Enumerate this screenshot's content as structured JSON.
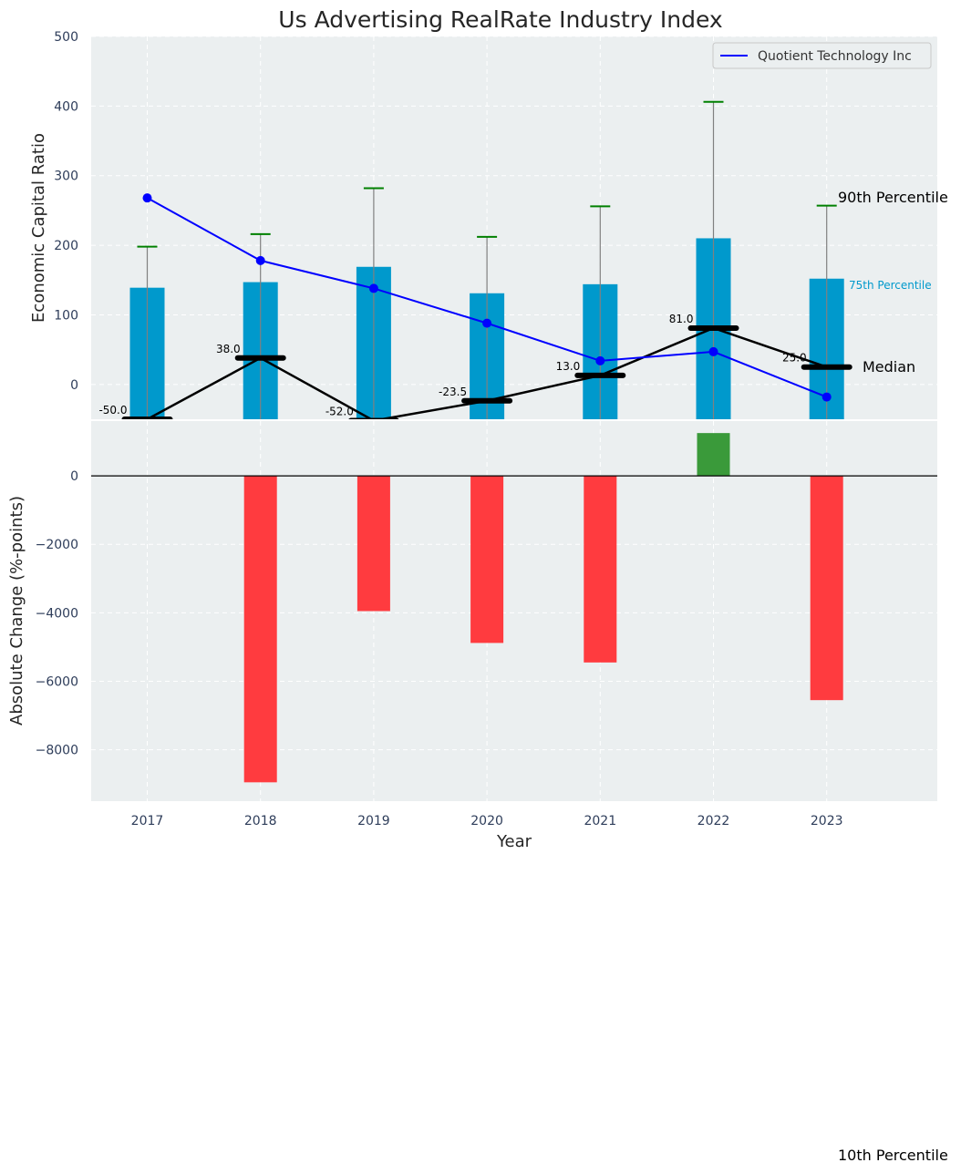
{
  "chart_data": [
    {
      "type": "bar",
      "title": "Us Advertising RealRate Industry Index",
      "ylabel": "Economic Capital Ratio",
      "ylim": [
        -50,
        500
      ],
      "yticks": [
        0,
        100,
        200,
        300,
        400,
        500
      ],
      "categories": [
        "2017",
        "2018",
        "2019",
        "2020",
        "2021",
        "2022",
        "2023"
      ],
      "grid": true,
      "legend": {
        "position": "top-right",
        "entries": [
          "Quotient Technology Inc"
        ]
      },
      "series": [
        {
          "name": "75th Percentile",
          "kind": "bar",
          "color": "#0099cc",
          "values": [
            139,
            147,
            169,
            131,
            144,
            210,
            152
          ]
        },
        {
          "name": "90th Percentile",
          "kind": "whisker",
          "color": "#008000",
          "values": [
            198,
            216,
            282,
            212,
            256,
            406,
            257
          ]
        },
        {
          "name": "Median",
          "kind": "line-marker",
          "color": "#000000",
          "values": [
            -50.0,
            38.0,
            -52.0,
            -23.5,
            13.0,
            81.0,
            25.0
          ],
          "labels": [
            "-50.0",
            "38.0",
            "-52.0",
            "-23.5",
            "13.0",
            "81.0",
            "25.0"
          ]
        },
        {
          "name": "Quotient Technology Inc",
          "kind": "line",
          "color": "#0000ff",
          "values": [
            268,
            178,
            138,
            88,
            34,
            47,
            -18
          ]
        }
      ],
      "annotations": {
        "p90": "90th Percentile",
        "p75": "75th Percentile",
        "median": "Median",
        "p10": "10th Percentile"
      }
    },
    {
      "type": "bar",
      "xlabel": "Year",
      "ylabel": "Absolute Change (%-points)",
      "ylim": [
        -9500,
        1600
      ],
      "yticks": [
        0,
        -2000,
        -4000,
        -6000,
        -8000
      ],
      "yticklabels": [
        "0",
        "−2000",
        "−4000",
        "−6000",
        "−8000"
      ],
      "categories": [
        "2018",
        "2019",
        "2020",
        "2021",
        "2022",
        "2023"
      ],
      "grid": true,
      "colors": {
        "positive": "#3a9a3a",
        "negative": "#ff3b3f"
      },
      "values": [
        -8950,
        -3950,
        -4880,
        -5450,
        1250,
        -6550
      ]
    }
  ]
}
